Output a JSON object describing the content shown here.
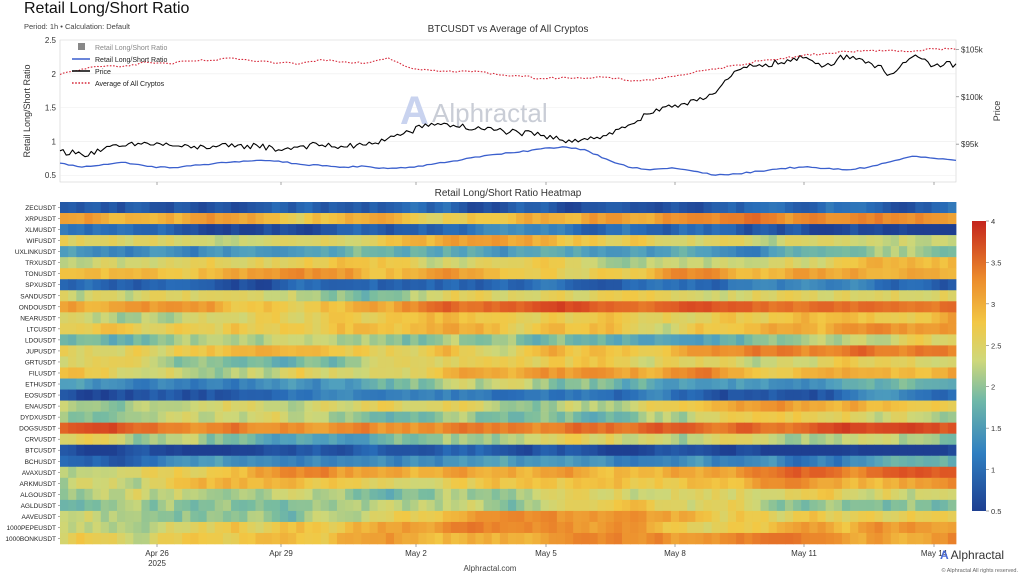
{
  "header": {
    "title": "Retail Long/Short Ratio",
    "subtitle": "Period: 1h • Calculation: Default"
  },
  "footer": {
    "site": "Alphractal.com",
    "logo_text": "Alphractal",
    "copyright": "© Alphractal All rights reserved."
  },
  "watermark": "Alphractal",
  "colors": {
    "ratio_line": "#3a5fcd",
    "price_line": "#000000",
    "average_line": "#d6283a",
    "heat_low": "#1e3f91",
    "heat_high": "#c4241d"
  },
  "chart_data": [
    {
      "type": "line",
      "title": "BTCUSDT vs Average of All Cryptos",
      "ylabel": "Retail Long/Short Ratio",
      "y2label": "Price",
      "ylim": [
        0.4,
        2.5
      ],
      "y2lim": [
        91000,
        106000
      ],
      "yticks": [
        "0.5",
        "1",
        "1.5",
        "2",
        "2.5"
      ],
      "y2ticks": [
        "$95k",
        "$100k",
        "$105k"
      ],
      "x_tick_labels": [
        "Apr 26",
        "Apr 29",
        "May 2",
        "May 5",
        "May 8",
        "May 11",
        "May 14"
      ],
      "x_year_label": "2025",
      "legend": [
        "Retail Long/Short Ratio",
        "Retail Long/Short Ratio",
        "Price",
        "Average of All Cryptos"
      ],
      "legend_position": "top-left",
      "x": [
        0,
        12,
        24,
        36,
        48,
        60,
        72,
        84,
        96,
        108,
        120,
        132,
        144,
        156,
        168,
        180,
        192,
        204,
        216,
        228,
        240,
        252,
        264,
        276,
        288,
        300,
        312,
        324,
        336,
        348,
        360,
        372,
        384,
        396,
        408,
        420,
        432,
        444,
        456,
        468,
        480,
        492
      ],
      "series": [
        {
          "name": "Retail Long/Short Ratio",
          "axis": "left",
          "values": [
            0.68,
            0.62,
            0.66,
            0.69,
            0.63,
            0.61,
            0.64,
            0.67,
            0.7,
            0.72,
            0.71,
            0.66,
            0.64,
            0.62,
            0.63,
            0.6,
            0.62,
            0.66,
            0.71,
            0.77,
            0.81,
            0.84,
            0.89,
            0.92,
            0.88,
            0.74,
            0.62,
            0.58,
            0.61,
            0.56,
            0.5,
            0.52,
            0.56,
            0.6,
            0.62,
            0.6,
            0.58,
            0.62,
            0.7,
            0.78,
            0.75,
            0.72
          ]
        },
        {
          "name": "Price",
          "axis": "right",
          "values": [
            94300,
            93900,
            94500,
            94800,
            95100,
            94900,
            94600,
            94800,
            94700,
            94900,
            94400,
            94800,
            94900,
            94700,
            94900,
            95600,
            96300,
            97200,
            97000,
            96600,
            96500,
            96200,
            95900,
            95400,
            95600,
            95900,
            97000,
            98200,
            98900,
            99700,
            100400,
            102800,
            103400,
            103600,
            104100,
            103300,
            104400,
            103700,
            102400,
            104200,
            103300,
            103500
          ]
        },
        {
          "name": "Average of All Cryptos",
          "axis": "left",
          "values": [
            1.99,
            2.07,
            2.11,
            2.12,
            2.17,
            2.15,
            2.19,
            2.2,
            2.23,
            2.18,
            2.16,
            2.15,
            2.21,
            2.18,
            2.16,
            2.24,
            2.09,
            2.05,
            2.03,
            2.04,
            1.99,
            1.97,
            1.93,
            1.95,
            1.93,
            1.95,
            1.9,
            1.91,
            1.96,
            2.02,
            2.07,
            2.13,
            2.19,
            2.23,
            2.27,
            2.3,
            2.33,
            2.34,
            2.35,
            2.33,
            2.37,
            2.36
          ]
        }
      ]
    },
    {
      "type": "heatmap",
      "title": "Retail Long/Short Ratio Heatmap",
      "x_tick_labels": [
        "Apr 26",
        "Apr 29",
        "May 2",
        "May 5",
        "May 8",
        "May 11",
        "May 14"
      ],
      "x_year_label": "2025",
      "rows": [
        "ZECUSDT",
        "XRPUSDT",
        "XLMUSDT",
        "WIFUSDT",
        "UXLINKUSDT",
        "TRXUSDT",
        "TONUSDT",
        "SPXUSDT",
        "SANDUSDT",
        "ONDOUSDT",
        "NEARUSDT",
        "LTCUSDT",
        "LDOUSDT",
        "JUPUSDT",
        "GRTUSDT",
        "FILUSDT",
        "ETHUSDT",
        "EOSUSDT",
        "ENAUSDT",
        "DYDXUSDT",
        "DOGSUSDT",
        "CRVUSDT",
        "BTCUSDT",
        "BCHUSDT",
        "AVAXUSDT",
        "ARKMUSDT",
        "ALGOUSDT",
        "AGLDUSDT",
        "AAVEUSDT",
        "1000PEPEUSDT",
        "1000BONKUSDT"
      ],
      "row_levels_start_to_end": [
        [
          0.7,
          0.9
        ],
        [
          2.6,
          2.9
        ],
        [
          0.9,
          0.8
        ],
        [
          2.3,
          2.5
        ],
        [
          1.5,
          1.8
        ],
        [
          2.1,
          2.3
        ],
        [
          2.5,
          2.8
        ],
        [
          0.7,
          1.1
        ],
        [
          2.0,
          2.4
        ],
        [
          2.6,
          3.4
        ],
        [
          2.2,
          2.6
        ],
        [
          2.4,
          2.7
        ],
        [
          1.7,
          1.9
        ],
        [
          2.2,
          3.0
        ],
        [
          1.8,
          2.5
        ],
        [
          2.3,
          2.9
        ],
        [
          1.4,
          1.7
        ],
        [
          0.8,
          1.0
        ],
        [
          2.1,
          2.5
        ],
        [
          1.8,
          2.1
        ],
        [
          3.0,
          3.3
        ],
        [
          1.9,
          2.1
        ],
        [
          0.6,
          0.6
        ],
        [
          1.3,
          1.3
        ],
        [
          2.4,
          3.1
        ],
        [
          2.1,
          2.6
        ],
        [
          1.9,
          2.3
        ],
        [
          1.7,
          2.1
        ],
        [
          2.2,
          2.6
        ],
        [
          2.4,
          2.8
        ],
        [
          2.5,
          2.9
        ]
      ],
      "colorbar_range": [
        0.5,
        4
      ],
      "colorbar_ticks": [
        "0.5",
        "1",
        "1.5",
        "2",
        "2.5",
        "3",
        "3.5",
        "4"
      ]
    }
  ]
}
